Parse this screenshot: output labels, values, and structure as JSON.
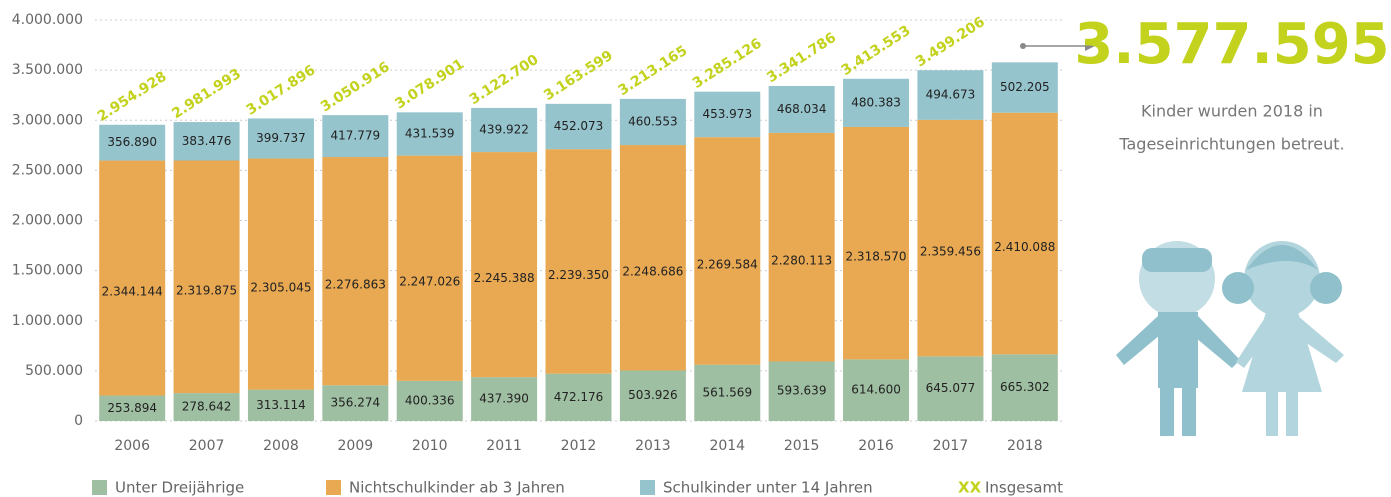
{
  "chart_data": {
    "type": "stacked_bar",
    "categories": [
      "2006",
      "2007",
      "2008",
      "2009",
      "2010",
      "2011",
      "2012",
      "2013",
      "2014",
      "2015",
      "2016",
      "2017",
      "2018"
    ],
    "series": [
      {
        "name": "Unter Dreijährige",
        "color": "#9fbfa2",
        "values": [
          253894,
          278642,
          313114,
          356274,
          400336,
          437390,
          472176,
          503926,
          561569,
          593639,
          614600,
          645077,
          665302
        ],
        "value_labels": [
          "253.894",
          "278.642",
          "313.114",
          "356.274",
          "400.336",
          "437.390",
          "472.176",
          "503.926",
          "561.569",
          "593.639",
          "614.600",
          "645.077",
          "665.302"
        ]
      },
      {
        "name": "Nichtschulkinder ab 3 Jahren",
        "color": "#e9a952",
        "values": [
          2344144,
          2319875,
          2305045,
          2276863,
          2247026,
          2245388,
          2239350,
          2248686,
          2269584,
          2280113,
          2318570,
          2359456,
          2410088
        ],
        "value_labels": [
          "2.344.144",
          "2.319.875",
          "2.305.045",
          "2.276.863",
          "2.247.026",
          "2.245.388",
          "2.239.350",
          "2.248.686",
          "2.269.584",
          "2.280.113",
          "2.318.570",
          "2.359.456",
          "2.410.088"
        ]
      },
      {
        "name": "Schulkinder unter 14 Jahren",
        "color": "#95c4cd",
        "values": [
          356890,
          383476,
          399737,
          417779,
          431539,
          439922,
          452073,
          460553,
          453973,
          468034,
          480383,
          494673,
          502205
        ],
        "value_labels": [
          "356.890",
          "383.476",
          "399.737",
          "417.779",
          "431.539",
          "439.922",
          "452.073",
          "460.553",
          "453.973",
          "468.034",
          "480.383",
          "494.673",
          "502.205"
        ]
      }
    ],
    "totals": {
      "name": "Insgesamt",
      "legend_symbol": "XX",
      "color": "#c3d21c",
      "values": [
        2954928,
        2981993,
        3017896,
        3050916,
        3078901,
        3122700,
        3163599,
        3213165,
        3285126,
        3341786,
        3413553,
        3499206,
        3577595
      ],
      "value_labels": [
        "2.954.928",
        "2.981.993",
        "3.017.896",
        "3.050.916",
        "3.078.901",
        "3.122.700",
        "3.163.599",
        "3.213.165",
        "3.285.126",
        "3.341.786",
        "3.413.553",
        "3.499.206",
        "3.577.595"
      ]
    },
    "callout_lines": [
      "Kinder wurden 2018 in",
      "Tageseinrichtungen betreut."
    ],
    "ylim": [
      0,
      4000000
    ],
    "yticks": [
      0,
      {
        "value": 500000,
        "label": "500.000"
      },
      {
        "value": 1000000,
        "label": "1.000.000"
      },
      {
        "value": 1500000,
        "label": "1.500.000"
      },
      {
        "value": 2000000,
        "label": "2.000.000"
      },
      {
        "value": 2500000,
        "label": "2.500.000"
      },
      {
        "value": 3000000,
        "label": "3.000.000"
      },
      {
        "value": 3500000,
        "label": "3.500.000"
      },
      {
        "value": 4000000,
        "label": "4.000.000"
      }
    ],
    "grid": true
  }
}
